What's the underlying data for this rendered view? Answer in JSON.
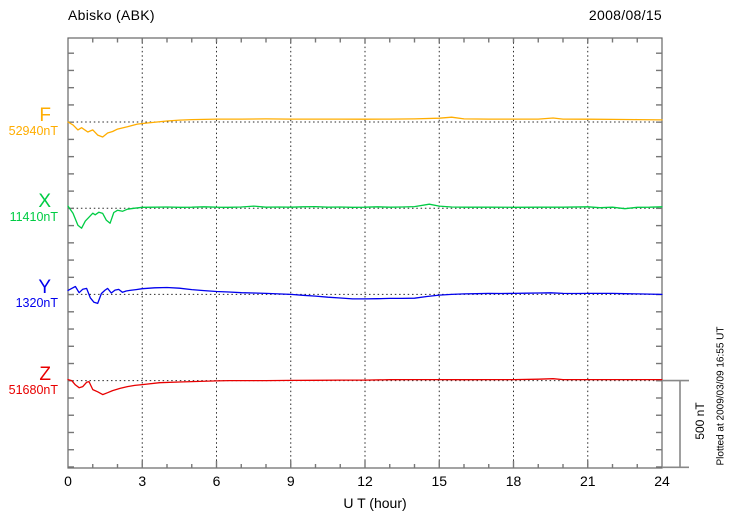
{
  "chart_data": {
    "type": "line",
    "title": "Abisko (ABK)",
    "date": "2008/08/15",
    "xlabel": "U T (hour)",
    "x_range_hours": [
      0,
      24
    ],
    "x_ticks_major": [
      0,
      3,
      6,
      9,
      12,
      15,
      18,
      21,
      24
    ],
    "x_minor_tick_hours": 1,
    "y_minor_tick_nT": 100,
    "grid": "dotted vertical gridlines every 3 h; dotted horizontal baseline per component",
    "legend_position": "left margin, colored component letter with baseline value",
    "scale_bar": {
      "label": "500 nT",
      "span_nT": 500
    },
    "plotted_at": "Plotted at 2009/03/09 16:55 UT",
    "series": [
      {
        "name": "F",
        "baseline_label": "52940nT",
        "baseline_nT": 52940,
        "color": "#FFAD00",
        "points_h_offset_nT": [
          [
            0,
            0
          ],
          [
            0.2,
            -17
          ],
          [
            0.4,
            -46
          ],
          [
            0.55,
            -33
          ],
          [
            0.8,
            -58
          ],
          [
            1,
            -46
          ],
          [
            1.2,
            -76
          ],
          [
            1.4,
            -87
          ],
          [
            1.6,
            -64
          ],
          [
            1.8,
            -55
          ],
          [
            2,
            -41
          ],
          [
            2.4,
            -28
          ],
          [
            2.8,
            -12
          ],
          [
            3.2,
            -6
          ],
          [
            3.6,
            0
          ],
          [
            4,
            6
          ],
          [
            4.5,
            11
          ],
          [
            5,
            14
          ],
          [
            6,
            17
          ],
          [
            7,
            17
          ],
          [
            8,
            18
          ],
          [
            9,
            17
          ],
          [
            10,
            17
          ],
          [
            11,
            17
          ],
          [
            12,
            16
          ],
          [
            13,
            17
          ],
          [
            14,
            18
          ],
          [
            15,
            22
          ],
          [
            15.5,
            28
          ],
          [
            16,
            18
          ],
          [
            17,
            17
          ],
          [
            18,
            17
          ],
          [
            19,
            17
          ],
          [
            19.6,
            23
          ],
          [
            20,
            17
          ],
          [
            21,
            16
          ],
          [
            22,
            15
          ],
          [
            23,
            14
          ],
          [
            24,
            12
          ]
        ]
      },
      {
        "name": "X",
        "baseline_label": "11410nT",
        "baseline_nT": 11410,
        "color": "#00CC44",
        "points_h_offset_nT": [
          [
            0,
            12
          ],
          [
            0.2,
            -29
          ],
          [
            0.4,
            -99
          ],
          [
            0.55,
            -116
          ],
          [
            0.7,
            -75
          ],
          [
            0.85,
            -52
          ],
          [
            1,
            -29
          ],
          [
            1.1,
            -38
          ],
          [
            1.25,
            -23
          ],
          [
            1.4,
            -30
          ],
          [
            1.55,
            -70
          ],
          [
            1.7,
            -87
          ],
          [
            1.85,
            -25
          ],
          [
            2,
            -12
          ],
          [
            2.2,
            -18
          ],
          [
            2.4,
            -6
          ],
          [
            2.7,
            0
          ],
          [
            3,
            5
          ],
          [
            3.5,
            6
          ],
          [
            4,
            7
          ],
          [
            4.5,
            5
          ],
          [
            5,
            6
          ],
          [
            5.5,
            8
          ],
          [
            6,
            6
          ],
          [
            6.5,
            5
          ],
          [
            7,
            7
          ],
          [
            7.5,
            12
          ],
          [
            8,
            6
          ],
          [
            8.5,
            7
          ],
          [
            9,
            6
          ],
          [
            9.5,
            8
          ],
          [
            10,
            9
          ],
          [
            10.5,
            6
          ],
          [
            11,
            7
          ],
          [
            11.5,
            5
          ],
          [
            12,
            6
          ],
          [
            12.5,
            8
          ],
          [
            13,
            6
          ],
          [
            13.5,
            7
          ],
          [
            14,
            9
          ],
          [
            14.6,
            23
          ],
          [
            15,
            12
          ],
          [
            15.5,
            7
          ],
          [
            16,
            6
          ],
          [
            17,
            6
          ],
          [
            18,
            5
          ],
          [
            19,
            6
          ],
          [
            20,
            6
          ],
          [
            21,
            8
          ],
          [
            21.5,
            3
          ],
          [
            22,
            6
          ],
          [
            22.5,
            -3
          ],
          [
            23,
            5
          ],
          [
            23.5,
            6
          ],
          [
            24,
            8
          ]
        ]
      },
      {
        "name": "Y",
        "baseline_label": "1320nT",
        "baseline_nT": 1320,
        "color": "#0000EE",
        "points_h_offset_nT": [
          [
            0,
            23
          ],
          [
            0.15,
            35
          ],
          [
            0.3,
            46
          ],
          [
            0.45,
            10
          ],
          [
            0.6,
            30
          ],
          [
            0.75,
            35
          ],
          [
            0.9,
            -20
          ],
          [
            1.05,
            -46
          ],
          [
            1.2,
            -52
          ],
          [
            1.35,
            5
          ],
          [
            1.5,
            25
          ],
          [
            1.6,
            35
          ],
          [
            1.75,
            8
          ],
          [
            1.9,
            25
          ],
          [
            2.05,
            29
          ],
          [
            2.2,
            12
          ],
          [
            2.35,
            20
          ],
          [
            2.5,
            23
          ],
          [
            2.75,
            28
          ],
          [
            3,
            33
          ],
          [
            3.5,
            38
          ],
          [
            4,
            40
          ],
          [
            4.5,
            36
          ],
          [
            5,
            28
          ],
          [
            5.5,
            22
          ],
          [
            6,
            17
          ],
          [
            6.5,
            14
          ],
          [
            7,
            10
          ],
          [
            7.5,
            8
          ],
          [
            8,
            6
          ],
          [
            8.5,
            3
          ],
          [
            9,
            0
          ],
          [
            9.5,
            -5
          ],
          [
            10,
            -10
          ],
          [
            10.5,
            -16
          ],
          [
            11,
            -21
          ],
          [
            11.5,
            -26
          ],
          [
            12,
            -26
          ],
          [
            12.5,
            -25
          ],
          [
            13,
            -23
          ],
          [
            13.5,
            -23
          ],
          [
            14,
            -22
          ],
          [
            14.5,
            -12
          ],
          [
            15,
            -4
          ],
          [
            15.5,
            0
          ],
          [
            16,
            3
          ],
          [
            16.5,
            4
          ],
          [
            17,
            6
          ],
          [
            17.5,
            5
          ],
          [
            18,
            6
          ],
          [
            18.5,
            7
          ],
          [
            19,
            8
          ],
          [
            19.5,
            9
          ],
          [
            20,
            6
          ],
          [
            20.5,
            5
          ],
          [
            21,
            6
          ],
          [
            21.5,
            6
          ],
          [
            22,
            6
          ],
          [
            22.5,
            4
          ],
          [
            23,
            3
          ],
          [
            23.5,
            2
          ],
          [
            24,
            0
          ]
        ]
      },
      {
        "name": "Z",
        "baseline_label": "51680nT",
        "baseline_nT": 51680,
        "color": "#E80000",
        "points_h_offset_nT": [
          [
            0,
            6
          ],
          [
            0.15,
            0
          ],
          [
            0.3,
            -25
          ],
          [
            0.45,
            -41
          ],
          [
            0.6,
            -35
          ],
          [
            0.75,
            -10
          ],
          [
            0.85,
            -6
          ],
          [
            1,
            -52
          ],
          [
            1.2,
            -65
          ],
          [
            1.4,
            -81
          ],
          [
            1.6,
            -70
          ],
          [
            1.8,
            -58
          ],
          [
            2.1,
            -45
          ],
          [
            2.4,
            -35
          ],
          [
            2.7,
            -28
          ],
          [
            3,
            -23
          ],
          [
            3.7,
            -12
          ],
          [
            4.5,
            -8
          ],
          [
            5,
            -6
          ],
          [
            6,
            -2
          ],
          [
            6.5,
            0
          ],
          [
            7,
            0
          ],
          [
            8,
            0
          ],
          [
            9,
            1
          ],
          [
            10,
            2
          ],
          [
            11,
            3
          ],
          [
            12,
            3
          ],
          [
            13,
            5
          ],
          [
            14,
            6
          ],
          [
            15,
            6
          ],
          [
            16,
            5
          ],
          [
            17,
            6
          ],
          [
            18,
            6
          ],
          [
            19,
            8
          ],
          [
            19.6,
            11
          ],
          [
            20,
            6
          ],
          [
            21,
            6
          ],
          [
            22,
            6
          ],
          [
            23,
            6
          ],
          [
            24,
            6
          ]
        ]
      }
    ]
  }
}
